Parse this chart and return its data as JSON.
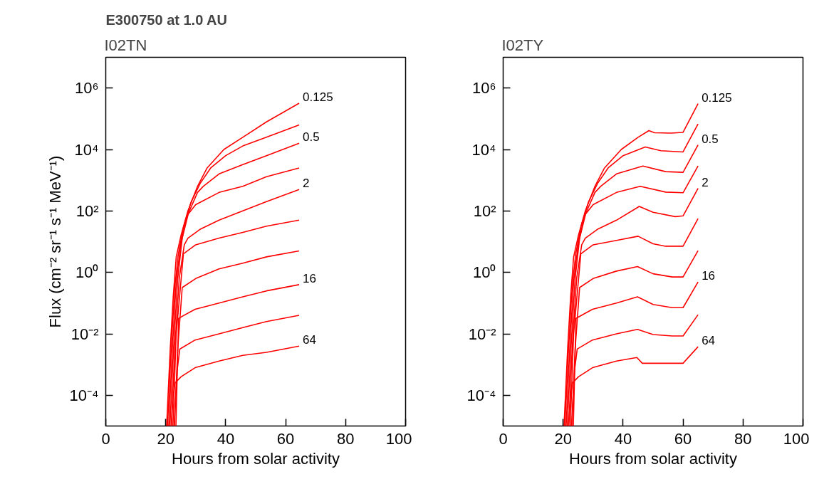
{
  "chart_data": [
    {
      "type": "line",
      "title": "E300750 at 1.0 AU",
      "subtitle": "I02TN",
      "xlabel": "Hours from solar activity",
      "ylabel": "Flux (cm⁻² sr⁻¹ s⁻¹ MeV⁻¹)",
      "log": "y",
      "xlim": [
        0,
        100
      ],
      "ylim": [
        1e-05,
        10000000.0
      ],
      "xticks": [
        0,
        20,
        40,
        60,
        80,
        100
      ],
      "yticks": [
        {
          "value": 0.0001,
          "label": "10⁻⁴"
        },
        {
          "value": 0.01,
          "label": "10⁻²"
        },
        {
          "value": 1,
          "label": "10⁰"
        },
        {
          "value": 100,
          "label": "10²"
        },
        {
          "value": 10000.0,
          "label": "10⁴"
        },
        {
          "value": 1000000.0,
          "label": "10⁶"
        }
      ],
      "series": [
        {
          "name": "0.125",
          "color": "#ff0000",
          "x": [
            20.3,
            21.5,
            22.5,
            23.5,
            25.1,
            27.4,
            30.6,
            33.8,
            39.4,
            45.7,
            53.6,
            64.5
          ],
          "values": [
            1e-05,
            0.0032,
            0.16,
            3.2,
            16,
            100,
            630,
            2500,
            10000.0,
            25000.0,
            79000.0,
            320000.0
          ]
        },
        {
          "color": "#ff0000",
          "x": [
            20.6,
            21.8,
            23.0,
            24.2,
            26,
            28.5,
            31.5,
            35,
            40,
            45.7,
            53.6,
            64.5
          ],
          "values": [
            1e-05,
            0.0032,
            0.32,
            4,
            32,
            200,
            790,
            2500,
            6300,
            13000.0,
            25000.0,
            63000.0
          ]
        },
        {
          "name": "0.5",
          "color": "#ff0000",
          "x": [
            21.0,
            22.2,
            23.5,
            25,
            27,
            30.6,
            32.5,
            37.8,
            45.7,
            53.6,
            64.5
          ],
          "values": [
            1e-05,
            0.0032,
            0.5,
            7.9,
            63,
            400,
            630,
            1600,
            3200,
            6300,
            16000.0
          ]
        },
        {
          "color": "#ff0000",
          "x": [
            21.4,
            22.6,
            24,
            25.5,
            27.5,
            30,
            37.8,
            45.7,
            53.6,
            64.5
          ],
          "values": [
            1e-05,
            0.0032,
            0.63,
            13,
            79,
            160,
            400,
            630,
            1300,
            2500
          ]
        },
        {
          "name": "2",
          "color": "#ff0000",
          "x": [
            21.9,
            23,
            24.5,
            26.2,
            27.4,
            31.4,
            37.8,
            45.7,
            53.6,
            64.5
          ],
          "values": [
            1e-05,
            0.0032,
            0.63,
            7.9,
            13,
            25,
            50,
            100,
            200,
            500
          ]
        },
        {
          "color": "#ff0000",
          "x": [
            22.4,
            23.5,
            25.9,
            30,
            37.8,
            45.7,
            53.6,
            64.5
          ],
          "values": [
            1e-05,
            0.01,
            4,
            7.9,
            13,
            20,
            32,
            50
          ]
        },
        {
          "color": "#ff0000",
          "x": [
            22.9,
            24,
            25.5,
            30,
            37.8,
            45.7,
            53.6,
            64.5
          ],
          "values": [
            1e-05,
            0.0032,
            0.32,
            0.63,
            1.3,
            2,
            3.2,
            5
          ]
        },
        {
          "name": "16",
          "color": "#ff0000",
          "x": [
            23.4,
            24.3,
            29.8,
            37.8,
            45.7,
            53.6,
            64.5
          ],
          "values": [
            1e-05,
            0.032,
            0.063,
            0.1,
            0.16,
            0.25,
            0.4
          ]
        },
        {
          "color": "#ff0000",
          "x": [
            22.8,
            23.8,
            24.7,
            29.8,
            37.8,
            45.7,
            53.6,
            64.5
          ],
          "values": [
            1e-05,
            0.00063,
            0.0032,
            0.0063,
            0.01,
            0.016,
            0.025,
            0.04
          ]
        },
        {
          "name": "64",
          "color": "#ff0000",
          "x": [
            21.8,
            22.5,
            23.1,
            25.1,
            29.8,
            37.8,
            45.7,
            53.6,
            64.5
          ],
          "values": [
            1e-05,
            0.0001,
            0.00025,
            0.0004,
            0.00079,
            0.0013,
            0.002,
            0.0025,
            0.004
          ]
        }
      ]
    },
    {
      "type": "line",
      "subtitle": "I02TY",
      "xlabel": "Hours from solar activity",
      "log": "y",
      "xlim": [
        0,
        100
      ],
      "ylim": [
        1e-05,
        10000000.0
      ],
      "xticks": [
        0,
        20,
        40,
        60,
        80,
        100
      ],
      "yticks": [
        {
          "value": 0.0001,
          "label": "10⁻⁴"
        },
        {
          "value": 0.01,
          "label": "10⁻²"
        },
        {
          "value": 1,
          "label": "10⁰"
        },
        {
          "value": 100,
          "label": "10²"
        },
        {
          "value": 10000.0,
          "label": "10⁴"
        },
        {
          "value": 1000000.0,
          "label": "10⁶"
        }
      ],
      "series": [
        {
          "name": "0.125",
          "color": "#ff0000",
          "x": [
            20.3,
            21.5,
            22.5,
            23.5,
            25.1,
            27.4,
            30.6,
            33.8,
            39.4,
            45,
            48.6,
            50.5,
            56,
            60,
            65
          ],
          "values": [
            1e-05,
            0.0032,
            0.16,
            3.2,
            16,
            100,
            630,
            2500,
            10000.0,
            25000.0,
            41000.0,
            35000.0,
            34000.0,
            36000.0,
            310000.0
          ]
        },
        {
          "color": "#ff0000",
          "x": [
            20.6,
            21.8,
            23.0,
            24.2,
            26,
            28.5,
            31.5,
            35,
            40,
            47.4,
            52.6,
            60,
            65
          ],
          "values": [
            1e-05,
            0.0032,
            0.32,
            4,
            32,
            200,
            790,
            2500,
            6300,
            12000.0,
            9100,
            8300,
            68000.0
          ]
        },
        {
          "name": "0.5",
          "color": "#ff0000",
          "x": [
            21.0,
            22.2,
            23.5,
            25,
            27,
            30.6,
            32.5,
            37.8,
            46.6,
            54.2,
            60,
            65
          ],
          "values": [
            1e-05,
            0.0032,
            0.5,
            7.9,
            63,
            400,
            630,
            1600,
            2900,
            1900,
            1800,
            14000.0
          ]
        },
        {
          "color": "#ff0000",
          "x": [
            21.4,
            22.6,
            24,
            25.5,
            27.5,
            30,
            37.8,
            45.7,
            54.2,
            60,
            65
          ],
          "values": [
            1e-05,
            0.0032,
            0.63,
            13,
            79,
            160,
            400,
            630,
            410,
            390,
            2900
          ]
        },
        {
          "name": "2",
          "color": "#ff0000",
          "x": [
            21.9,
            23,
            24.5,
            26.2,
            27.4,
            31.4,
            37.8,
            45.4,
            50,
            57.4,
            60,
            65
          ],
          "values": [
            1e-05,
            0.0032,
            0.63,
            7.9,
            13,
            25,
            50,
            140,
            90,
            65,
            69,
            540
          ]
        },
        {
          "color": "#ff0000",
          "x": [
            22.4,
            23.5,
            25.9,
            30,
            37.8,
            45,
            50,
            54.2,
            60,
            65
          ],
          "values": [
            1e-05,
            0.01,
            4,
            7.9,
            11,
            15,
            8.5,
            7.1,
            7.1,
            56
          ]
        },
        {
          "color": "#ff0000",
          "x": [
            22.9,
            24,
            25.5,
            30,
            37.8,
            44.8,
            50,
            56.4,
            60,
            65
          ],
          "values": [
            1e-05,
            0.0032,
            0.32,
            0.63,
            1.1,
            1.55,
            0.9,
            0.71,
            0.71,
            5.1
          ]
        },
        {
          "name": "16",
          "color": "#ff0000",
          "x": [
            23.4,
            24.3,
            29.8,
            37.8,
            44.8,
            50,
            56.4,
            60,
            65
          ],
          "values": [
            1e-05,
            0.032,
            0.063,
            0.1,
            0.16,
            0.09,
            0.071,
            0.071,
            0.49
          ]
        },
        {
          "color": "#ff0000",
          "x": [
            22.8,
            23.8,
            24.7,
            29.8,
            37.8,
            44.8,
            50,
            56.4,
            60,
            65
          ],
          "values": [
            1e-05,
            0.00063,
            0.0032,
            0.0063,
            0.01,
            0.014,
            0.0095,
            0.0085,
            0.0085,
            0.042
          ]
        },
        {
          "name": "64",
          "color": "#ff0000",
          "x": [
            21.8,
            22.5,
            23.1,
            25.1,
            29.8,
            37.8,
            44.6,
            46.4,
            56,
            60,
            65
          ],
          "values": [
            1e-05,
            0.0001,
            0.00025,
            0.0004,
            0.00079,
            0.0013,
            0.0017,
            0.0011,
            0.0011,
            0.0011,
            0.0038
          ]
        }
      ]
    }
  ]
}
